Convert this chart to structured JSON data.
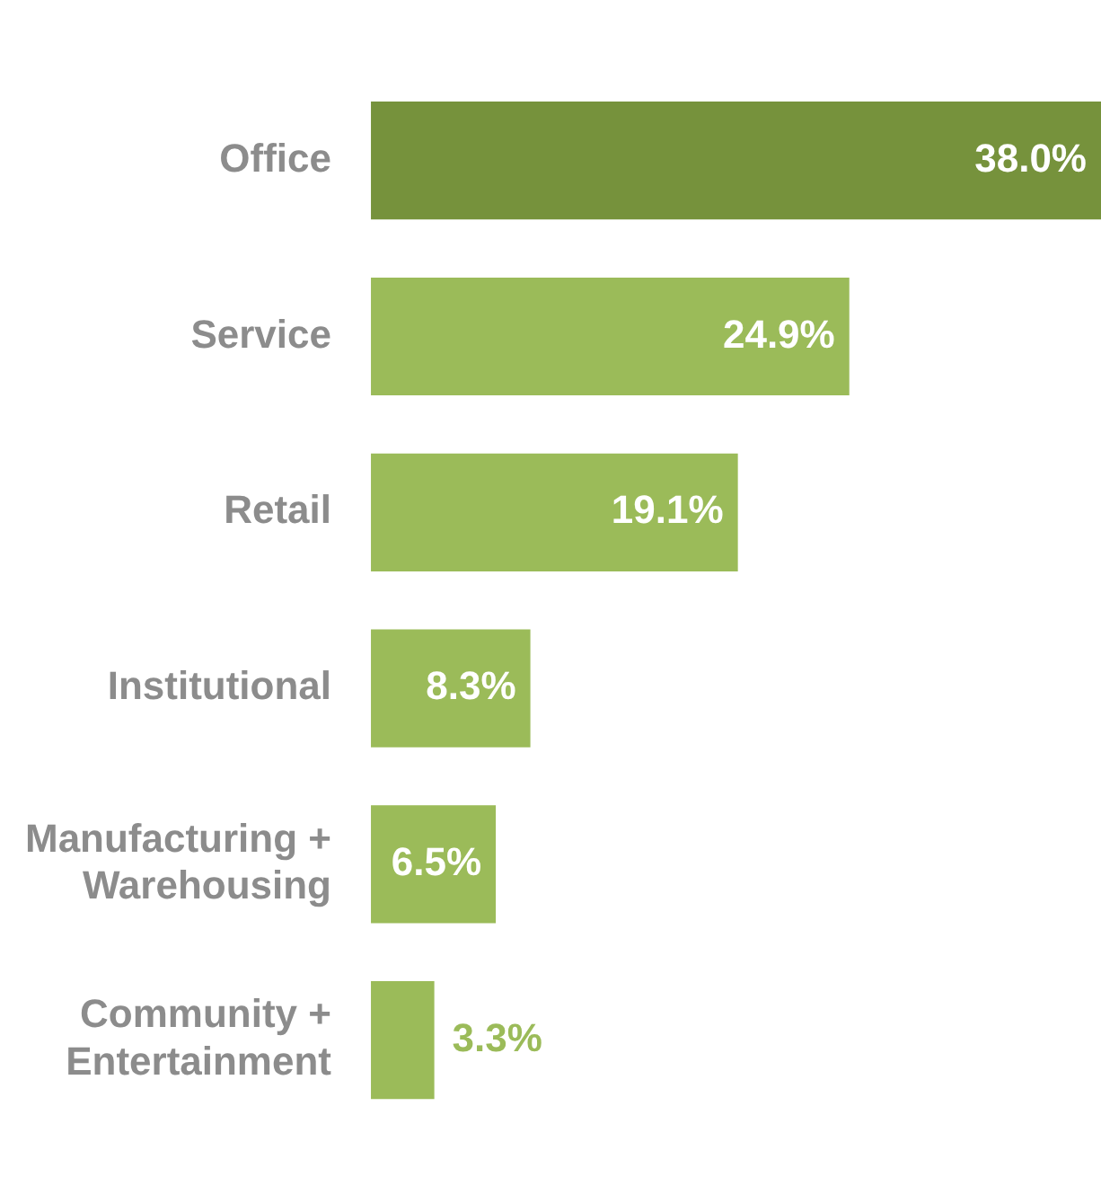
{
  "chart_data": {
    "type": "bar",
    "orientation": "horizontal",
    "categories": [
      "Office",
      "Service",
      "Retail",
      "Institutional",
      "Manufacturing + Warehousing",
      "Community + Entertainment"
    ],
    "values": [
      38.0,
      24.9,
      19.1,
      8.3,
      6.5,
      3.3
    ],
    "colors": [
      "#76923c",
      "#9bbb59",
      "#9bbb59",
      "#9bbb59",
      "#9bbb59",
      "#9bbb59"
    ],
    "value_labels": [
      "38.0%",
      "24.9%",
      "19.1%",
      "8.3%",
      "6.5%",
      "3.3%"
    ],
    "legend": false
  }
}
